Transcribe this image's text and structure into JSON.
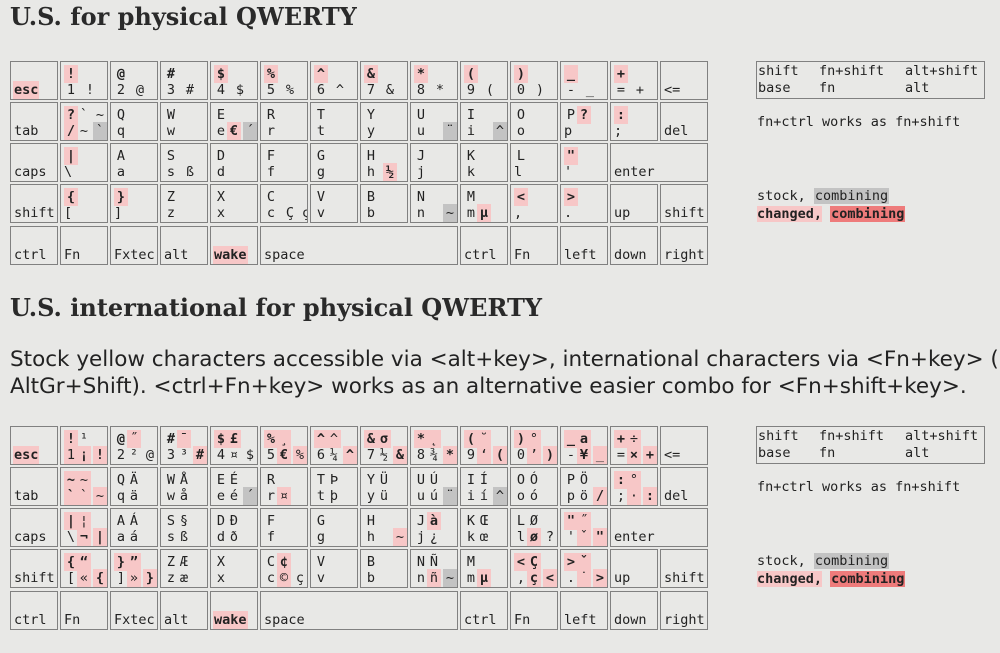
{
  "section1": {
    "title": "U.S. for physical QWERTY",
    "keyboard": [
      [
        {
          "w": 48,
          "name": "esc",
          "name_hl": true
        },
        {
          "w": 48,
          "tl": "!",
          "tl_c": "hl",
          "bl": "1",
          "bl_c": "",
          "br": "!",
          "br_c": ""
        },
        {
          "w": 48,
          "tl": "@",
          "bl": "2",
          "br": "@"
        },
        {
          "w": 48,
          "tl": "#",
          "bl": "3",
          "br": "#"
        },
        {
          "w": 48,
          "tl": "$",
          "tl_c": "hl",
          "bl": "4",
          "br": "$"
        },
        {
          "w": 48,
          "tl": "%",
          "tl_c": "hl",
          "bl": "5",
          "br": "%"
        },
        {
          "w": 48,
          "tl": "^",
          "tl_c": "hl",
          "bl": "6",
          "br": "^"
        },
        {
          "w": 48,
          "tl": "&",
          "tl_c": "hl",
          "bl": "7",
          "br": "&"
        },
        {
          "w": 48,
          "tl": "*",
          "tl_c": "hl",
          "bl": "8",
          "br": "*"
        },
        {
          "w": 48,
          "tl": "(",
          "tl_c": "hl",
          "bl": "9",
          "br": "("
        },
        {
          "w": 48,
          "tl": ")",
          "tl_c": "hl",
          "bl": "0",
          "br": ")"
        },
        {
          "w": 48,
          "tl": "_",
          "tl_c": "hl",
          "bl": "-",
          "br": "_"
        },
        {
          "w": 48,
          "tl": "+",
          "tl_c": "hl",
          "bl": "=",
          "br": "+"
        },
        {
          "w": 48,
          "name": "<="
        }
      ],
      [
        {
          "w": 48,
          "name": "tab"
        },
        {
          "w": 48,
          "tl": "?",
          "tl_c": "hl",
          "tr": "`",
          "tr_c": "",
          "tr2": "~",
          "bl": "/",
          "bl_c": "hl",
          "br": "~",
          "br_c": "",
          "br2": "`",
          "br2_c": "gs"
        },
        {
          "w": 48,
          "tl": "Q",
          "bl": "q"
        },
        {
          "w": 48,
          "tl": "W",
          "bl": "w"
        },
        {
          "w": 48,
          "tl": "E",
          "bl": "e",
          "br": "€",
          "br_c": "hl",
          "br2": "´",
          "br2_c": "gs"
        },
        {
          "w": 48,
          "tl": "R",
          "bl": "r"
        },
        {
          "w": 48,
          "tl": "T",
          "bl": "t"
        },
        {
          "w": 48,
          "tl": "Y",
          "bl": "y"
        },
        {
          "w": 48,
          "tl": "U",
          "bl": "u",
          "br": "¨",
          "br_c": "gs"
        },
        {
          "w": 48,
          "tl": "I",
          "bl": "i",
          "br": "^",
          "br_c": "gs"
        },
        {
          "w": 48,
          "tl": "O",
          "bl": "o"
        },
        {
          "w": 48,
          "tl": "P",
          "tr": "?",
          "tr_c": "hl",
          "bl": "p",
          "br": "/"
        },
        {
          "w": 48,
          "tl": ":",
          "tl_c": "hl",
          "bl": ";",
          "br": ":"
        },
        {
          "w": 48,
          "name": "del"
        }
      ],
      [
        {
          "w": 98,
          "name": "caps",
          "sub": [
            {
              "tl": "|",
              "tl_c": "hl",
              "bl": "\\",
              "br": "|",
              "x": 50
            }
          ]
        },
        {
          "w": 48,
          "tl": "A",
          "bl": "a"
        },
        {
          "w": 48,
          "tl": "S",
          "bl": "s",
          "br": "ß"
        },
        {
          "w": 48,
          "tl": "D",
          "bl": "d"
        },
        {
          "w": 48,
          "tl": "F",
          "bl": "f"
        },
        {
          "w": 48,
          "tl": "G",
          "bl": "g"
        },
        {
          "w": 48,
          "tl": "H",
          "bl": "h",
          "br": "½",
          "br_c": "hl"
        },
        {
          "w": 48,
          "tl": "J",
          "bl": "j"
        },
        {
          "w": 48,
          "tl": "K",
          "bl": "k"
        },
        {
          "w": 48,
          "tl": "L",
          "bl": "l",
          "br": "?"
        },
        {
          "w": 48,
          "tl": "\"",
          "tl_c": "hl",
          "bl": "'",
          "br": "\""
        },
        {
          "w": 98,
          "name": "enter"
        }
      ]
    ]
  },
  "s1": {
    "r0": [
      "esc",
      "!",
      "1 !",
      "@",
      "2 @",
      "#",
      "3 #",
      "$",
      "4 $",
      "%",
      "5 %",
      "^",
      "6 ^",
      "&",
      "7 &",
      "*",
      "8 *",
      "(",
      "9 (",
      ")",
      "0 )",
      "_",
      "- _",
      "+",
      "= +",
      "<="
    ],
    "r1": [
      "tab",
      "?",
      "`",
      "~",
      "/",
      "~",
      "`",
      "Q",
      "q",
      "W",
      "w",
      "E",
      "e",
      "€",
      "´",
      "R",
      "r",
      "T",
      "t",
      "Y",
      "y",
      "U",
      "u",
      "¨",
      "I",
      "i",
      "^",
      "O",
      "o",
      "P",
      "?",
      "p /",
      ":",
      "; :",
      "del"
    ],
    "r2": [
      "caps",
      "|",
      "\\ |",
      "A",
      "a",
      "S",
      "s",
      "ß",
      "D",
      "d",
      "F",
      "f",
      "G",
      "g",
      "H",
      "h",
      "½",
      "J",
      "j",
      "K",
      "k",
      "L",
      "l ?",
      "\"",
      "' \"",
      "enter"
    ],
    "r3": [
      "shift",
      "{",
      "[ {",
      "}",
      "] }",
      "Z",
      "z",
      "X",
      "x",
      "C",
      "Ç",
      "c",
      "ç",
      "V",
      "v",
      "B",
      "b",
      "N",
      "n",
      "~",
      "m",
      "µ",
      "M",
      "<",
      ", <",
      ">",
      ". >",
      "up",
      "shift"
    ],
    "r4": [
      "ctrl",
      "Fn",
      "Fxtec",
      "alt",
      "wake",
      "space",
      "ctrl",
      "Fn",
      "left",
      "down",
      "right"
    ]
  },
  "s2": {
    "title": "U.S. international for physical QWERTY",
    "para1": "Stock yellow characters accessible via <alt+key>, international characters via <Fn+key> (",
    "para2": "AltGr+Shift). <ctrl+Fn+key> works as an alternative easier combo for <Fn+shift+key>.",
    "r0": [
      "esc",
      "!",
      "¹",
      "1",
      "¡",
      "!",
      "@",
      "˝",
      "2",
      "²",
      "@",
      "#",
      "¯",
      "3",
      "³",
      "#",
      "$",
      "£",
      "4",
      "¤",
      "$",
      "%",
      "¸",
      "5",
      "€",
      "%",
      "^",
      "^",
      "6",
      "¼",
      "^",
      "&",
      "σ",
      "7",
      "½",
      "&",
      "*",
      "˛",
      "8",
      "¾",
      "*",
      "(",
      "˘",
      "9",
      "‘",
      "(",
      ")",
      "°",
      "0",
      "’",
      ")",
      "_",
      "a",
      "-",
      "¥",
      "_",
      "+",
      "÷",
      "=",
      "×",
      "+",
      "<="
    ],
    "r1": [
      "tab",
      "~",
      "~",
      "`",
      "`",
      "~",
      "Q",
      "Ä",
      "q",
      "ä",
      "W",
      "Å",
      "w",
      "å",
      "E",
      "É",
      "e",
      "é",
      "´",
      "R",
      "r",
      "¤",
      "T",
      "Þ",
      "t",
      "þ",
      "Y",
      "Ü",
      "y",
      "ü",
      "U",
      "Ú",
      "u",
      "ú",
      "¨",
      "I",
      "Í",
      "i",
      "í",
      "^",
      "O",
      "Ó",
      "o",
      "ó",
      "P",
      "Ö",
      "p",
      "ö",
      "/",
      ":",
      "°",
      ";",
      "·",
      ":",
      "del"
    ],
    "r2": [
      "caps",
      "|",
      "¦",
      "\\",
      "¬",
      "|",
      "A",
      "Á",
      "a",
      "á",
      "S",
      "§",
      "s",
      "ß",
      "D",
      "Ð",
      "d",
      "ð",
      "F",
      "f",
      "G",
      "g",
      "H",
      "h",
      "~",
      "J",
      "à",
      "j",
      "¿",
      "K",
      "Œ",
      "k",
      "œ",
      "L",
      "Ø",
      "l",
      "ø",
      "?",
      "\"",
      "˝",
      "'",
      "ˇ",
      "\"",
      "enter"
    ],
    "r3": [
      "shift",
      "{",
      "“",
      "[",
      "«",
      "{",
      "}",
      "”",
      "]",
      "»",
      "}",
      "Z",
      "Æ",
      "z",
      "æ",
      "X",
      "x",
      "C",
      "¢",
      "c",
      "©",
      "ç",
      "V",
      "v",
      "B",
      "b",
      "N",
      "Ñ",
      "n",
      "ñ",
      "~",
      "M",
      "m",
      "µ",
      "<",
      "Ç",
      ",",
      "ç",
      "<",
      ">",
      "ˇ",
      ".",
      "˙",
      ">",
      "up",
      "shift"
    ],
    "r4": [
      "ctrl",
      "Fn",
      "Fxtec",
      "alt",
      "wake",
      "space",
      "ctrl",
      "Fn",
      "left",
      "down",
      "right"
    ]
  },
  "legend": {
    "shift": "shift",
    "fn_shift": "fn+shift",
    "alt_shift": "alt+shift",
    "base": "base",
    "fn": "fn",
    "alt": "alt",
    "note": "fn+ctrl works as fn+shift",
    "stock": "stock,",
    "combining": "combining",
    "changed": "changed,",
    "combining2": "combining"
  },
  "colors": {
    "light": "#f7c7c7",
    "medium": "#ee7b7b",
    "gray": "#c3c3c3",
    "bg": "#e8e8e6"
  }
}
